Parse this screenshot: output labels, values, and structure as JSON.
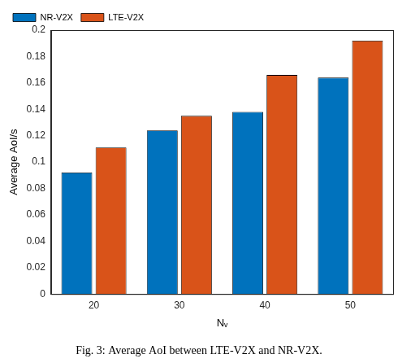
{
  "chart_data": {
    "type": "bar",
    "title": "Fig. 3: Average AoI between LTE-V2X and NR-V2X.",
    "x_label": "Nᵥ",
    "y_label": "Average AoI/s",
    "categories": [
      "20",
      "30",
      "40",
      "50"
    ],
    "series": [
      {
        "name": "NR-V2X",
        "color": "#0072BD",
        "values": [
          0.092,
          0.124,
          0.138,
          0.164
        ]
      },
      {
        "name": "LTE-V2X",
        "color": "#D95319",
        "values": [
          0.111,
          0.135,
          0.166,
          0.192
        ]
      }
    ],
    "ylim": [
      0,
      0.2
    ],
    "yticks": [
      0,
      0.02,
      0.04,
      0.06,
      0.08,
      0.1,
      0.12,
      0.14,
      0.16,
      0.18,
      0.2
    ],
    "grid": false,
    "legend": "top-left"
  }
}
